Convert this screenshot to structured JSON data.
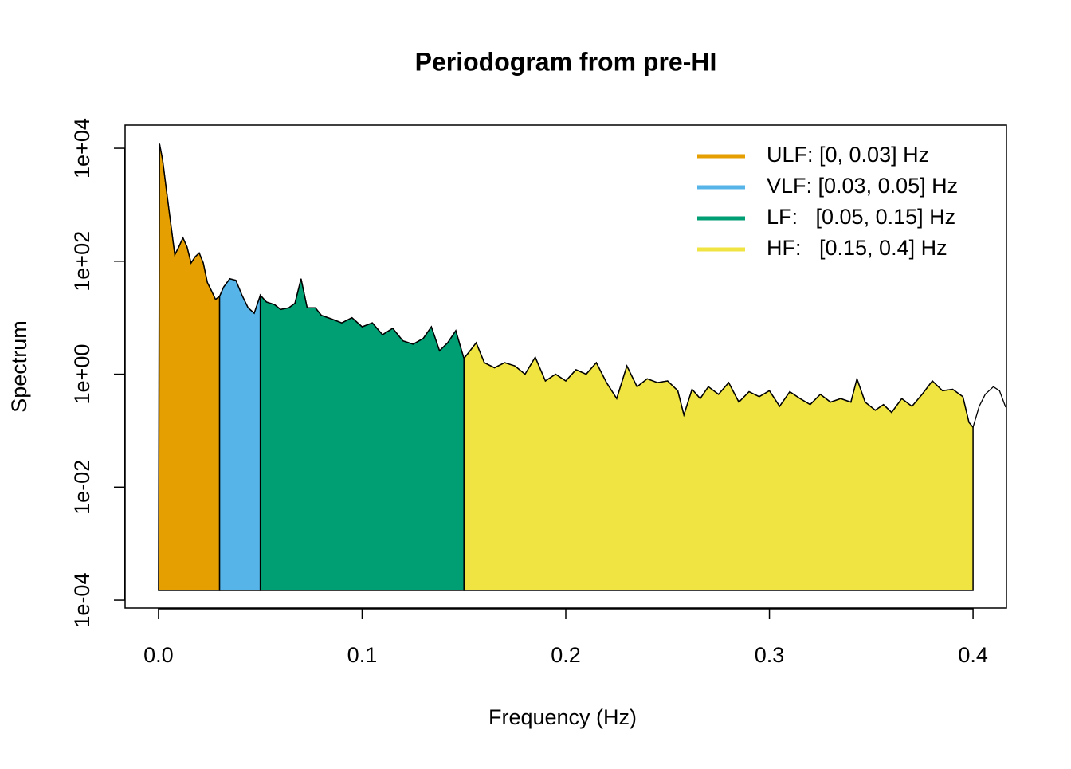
{
  "chart_data": {
    "type": "area",
    "title": "Periodogram from pre-HI",
    "x_label": "Frequency (Hz)",
    "y_label": "Spectrum",
    "y_scale": "log",
    "xlim": [
      -0.0164,
      0.4164
    ],
    "ylim": [
      7.24e-05,
      25700
    ],
    "xticks": [
      {
        "value": 0,
        "label": "0.0"
      },
      0.1,
      0.2,
      0.3,
      0.4
    ],
    "yticks": [
      {
        "value": 0.0001,
        "label": "1e-04"
      },
      {
        "value": 0.01,
        "label": "1e-02"
      },
      {
        "value": 1,
        "label": "1e+00"
      },
      {
        "value": 100,
        "label": "1e+02"
      },
      {
        "value": 10000,
        "label": "1e+04"
      }
    ],
    "line_color": "#000000",
    "legend_position": "topright",
    "bands": [
      {
        "name": "ULF: [0, 0.03] Hz",
        "color": "#e69f00",
        "range": [
          0,
          0.03
        ]
      },
      {
        "name": "VLF: [0.03, 0.05] Hz",
        "color": "#56b4e9",
        "range": [
          0.03,
          0.05
        ]
      },
      {
        "name": "LF:   [0.05, 0.15] Hz",
        "color": "#009e73",
        "range": [
          0.05,
          0.15
        ]
      },
      {
        "name": "HF:   [0.15, 0.4] Hz",
        "color": "#f0e442",
        "range": [
          0.15,
          0.4
        ]
      }
    ],
    "x": [
      0.0005,
      0.002,
      0.004,
      0.006,
      0.008,
      0.01,
      0.012,
      0.014,
      0.016,
      0.018,
      0.02,
      0.022,
      0.024,
      0.026,
      0.028,
      0.03,
      0.032,
      0.035,
      0.038,
      0.041,
      0.044,
      0.047,
      0.05,
      0.053,
      0.057,
      0.06,
      0.064,
      0.067,
      0.07,
      0.073,
      0.077,
      0.08,
      0.085,
      0.09,
      0.095,
      0.1,
      0.105,
      0.11,
      0.115,
      0.12,
      0.125,
      0.13,
      0.134,
      0.138,
      0.142,
      0.146,
      0.15,
      0.153,
      0.156,
      0.16,
      0.165,
      0.17,
      0.175,
      0.18,
      0.185,
      0.19,
      0.195,
      0.2,
      0.205,
      0.21,
      0.215,
      0.22,
      0.225,
      0.23,
      0.235,
      0.24,
      0.245,
      0.25,
      0.255,
      0.258,
      0.262,
      0.266,
      0.27,
      0.275,
      0.28,
      0.285,
      0.29,
      0.295,
      0.3,
      0.305,
      0.31,
      0.315,
      0.32,
      0.325,
      0.33,
      0.335,
      0.34,
      0.343,
      0.347,
      0.352,
      0.356,
      0.36,
      0.365,
      0.37,
      0.375,
      0.38,
      0.385,
      0.39,
      0.395,
      0.398,
      0.4,
      0.403,
      0.406,
      0.41,
      0.413,
      0.416
    ],
    "values": [
      12000,
      6300,
      1700,
      470,
      130,
      180,
      260,
      180,
      93,
      120,
      140,
      93,
      42,
      30,
      21,
      24,
      35,
      49,
      46,
      25,
      15,
      12,
      25,
      19,
      17,
      14,
      15,
      18,
      49,
      15,
      15,
      11,
      9.5,
      8.1,
      10,
      6.9,
      8.1,
      5.0,
      6.5,
      3.9,
      3.4,
      4.3,
      6.9,
      2.6,
      3.6,
      5.9,
      1.9,
      2.6,
      3.6,
      1.6,
      1.3,
      1.6,
      1.4,
      1.0,
      2.0,
      0.76,
      1.0,
      0.76,
      1.2,
      1.0,
      1.6,
      0.71,
      0.37,
      1.4,
      0.6,
      0.83,
      0.71,
      0.76,
      0.51,
      0.19,
      0.54,
      0.37,
      0.6,
      0.44,
      0.71,
      0.32,
      0.49,
      0.4,
      0.51,
      0.27,
      0.49,
      0.37,
      0.29,
      0.44,
      0.32,
      0.37,
      0.32,
      0.83,
      0.32,
      0.23,
      0.29,
      0.21,
      0.37,
      0.27,
      0.44,
      0.76,
      0.51,
      0.54,
      0.4,
      0.14,
      0.115,
      0.27,
      0.44,
      0.6,
      0.51,
      0.26
    ]
  }
}
